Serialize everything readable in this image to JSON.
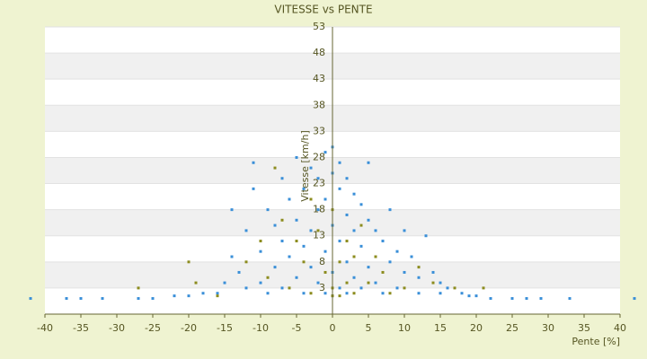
{
  "chart_data": {
    "type": "scatter",
    "title": "VITESSE vs PENTE",
    "xlabel": "Pente [%]",
    "ylabel": "Vitesse [km/h]",
    "xlim": [
      -40,
      40
    ],
    "xticks": [
      -40,
      -35,
      -30,
      -25,
      -20,
      -15,
      -10,
      -5,
      0,
      5,
      10,
      15,
      20,
      25,
      30,
      35,
      40
    ],
    "ylim": [
      -2,
      53
    ],
    "yticks": [
      3,
      8,
      13,
      18,
      23,
      28,
      33,
      38,
      43,
      48,
      53
    ],
    "grid": true,
    "series": [
      {
        "color": "#3a8fd8",
        "x": [
          -42,
          -37,
          -35,
          -32,
          -27,
          -25,
          -22,
          -20,
          -18,
          -16,
          -15,
          -14,
          -14,
          -13,
          -12,
          -12,
          -11,
          -11,
          -10,
          -10,
          -9,
          -9,
          -8,
          -8,
          -7,
          -7,
          -7,
          -6,
          -6,
          -5,
          -5,
          -5,
          -4,
          -4,
          -4,
          -3,
          -3,
          -3,
          -2,
          -2,
          -2,
          -1,
          -1,
          -1,
          -1,
          0,
          0,
          0,
          0,
          0,
          1,
          1,
          1,
          1,
          2,
          2,
          2,
          2,
          3,
          3,
          3,
          4,
          4,
          4,
          5,
          5,
          5,
          6,
          6,
          7,
          7,
          8,
          8,
          9,
          9,
          10,
          10,
          11,
          12,
          12,
          13,
          14,
          15,
          15,
          16,
          18,
          19,
          20,
          22,
          25,
          27,
          29,
          33,
          42
        ],
        "values": [
          1,
          1,
          1,
          1,
          1,
          1,
          1.5,
          1.5,
          2,
          2,
          4,
          18,
          9,
          6,
          3,
          14,
          27,
          22,
          10,
          4,
          18,
          2,
          15,
          7,
          24,
          12,
          3,
          20,
          9,
          28,
          16,
          5,
          22,
          11,
          2,
          26,
          14,
          7,
          24,
          18,
          4,
          29,
          20,
          10,
          2,
          30,
          25,
          15,
          6,
          1.5,
          27,
          22,
          12,
          3,
          24,
          17,
          8,
          2,
          21,
          14,
          5,
          19,
          11,
          3,
          27,
          16,
          7,
          14,
          4,
          12,
          2,
          18,
          8,
          10,
          3,
          14,
          6,
          9,
          5,
          2,
          13,
          6,
          4,
          2,
          3,
          2,
          1.5,
          1.5,
          1,
          1,
          1,
          1,
          1,
          1
        ]
      },
      {
        "color": "#8c8c1e",
        "x": [
          -27,
          -20,
          -19,
          -16,
          -12,
          -10,
          -9,
          -8,
          -7,
          -6,
          -5,
          -4,
          -3,
          -3,
          -2,
          -1,
          0,
          0,
          0,
          1,
          1,
          2,
          2,
          3,
          3,
          4,
          5,
          6,
          7,
          8,
          10,
          12,
          14,
          17,
          21
        ],
        "values": [
          3,
          8,
          4,
          1.5,
          8,
          12,
          5,
          26,
          16,
          3,
          12,
          8,
          20,
          2,
          14,
          6,
          3,
          1.5,
          18,
          8,
          1.5,
          4,
          12,
          9,
          2,
          15,
          4,
          9,
          6,
          2,
          3,
          7,
          4,
          3,
          3
        ]
      }
    ]
  }
}
